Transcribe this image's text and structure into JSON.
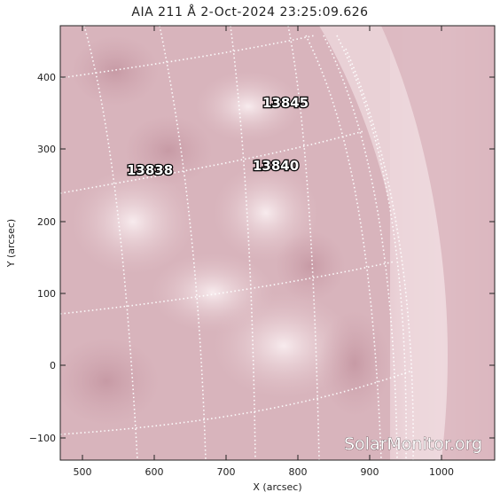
{
  "title": "AIA 211 Å  2-Oct-2024 23:25:09.626",
  "xlabel": "X (arcsec)",
  "ylabel": "Y (arcsec)",
  "x_ticks": [
    "500",
    "600",
    "700",
    "800",
    "900",
    "1000"
  ],
  "y_ticks": [
    "400",
    "300",
    "200",
    "100",
    "0",
    "−100"
  ],
  "regions": [
    "13845",
    "13838",
    "13840"
  ],
  "watermark": "SolarMonitor.org",
  "colors": {
    "disk": "#d9b6bd",
    "limb": "#f2e3e6",
    "offlimb": "#c79aa5",
    "grid": "#ffffff"
  }
}
